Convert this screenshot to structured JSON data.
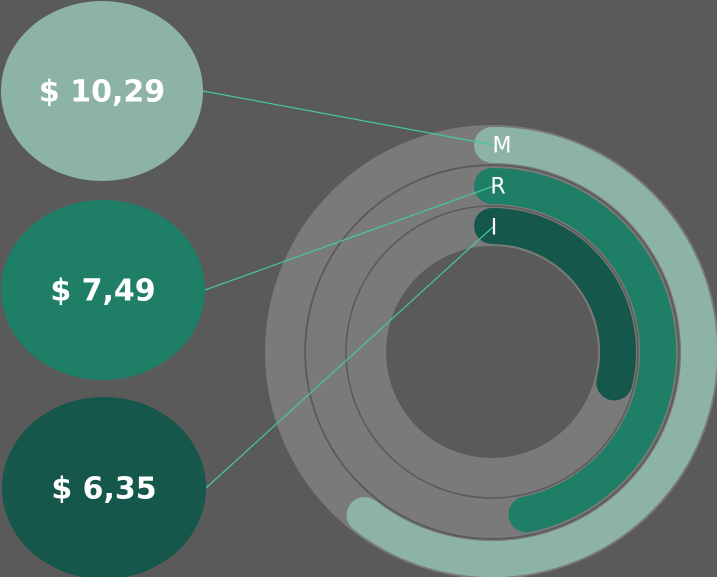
{
  "chart_data": {
    "type": "radial-bar",
    "series": [
      {
        "label": "M",
        "value_label": "$ 10,29",
        "value": 10.29,
        "color": "#8db3a7"
      },
      {
        "label": "R",
        "value_label": "$ 7,49",
        "value": 7.49,
        "color": "#1f7f66"
      },
      {
        "label": "I",
        "value_label": "$ 6,35",
        "value": 6.35,
        "color": "#15574a"
      }
    ],
    "connector_color": "#47c79a",
    "track_color": "#7a7a7a",
    "background_color": "#5a5a5a"
  }
}
